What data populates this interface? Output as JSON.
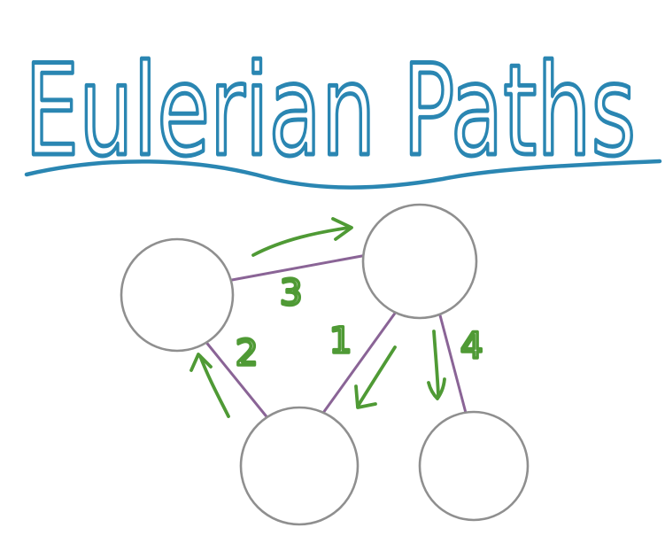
{
  "title": "Eulerian Paths",
  "colors": {
    "title": "#2a86b2",
    "node_stroke": "#8f8f8f",
    "edge": "#8a6496",
    "arrow": "#4f9a35",
    "background": "#ffffff"
  },
  "graph": {
    "nodes": [
      "node-a",
      "node-b",
      "node-c",
      "node-d"
    ],
    "edges": [
      {
        "id": "edge-1",
        "from": "node-b",
        "to": "node-c",
        "label": "1"
      },
      {
        "id": "edge-2",
        "from": "node-c",
        "to": "node-a",
        "label": "2"
      },
      {
        "id": "edge-3",
        "from": "node-a",
        "to": "node-b",
        "label": "3"
      },
      {
        "id": "edge-4",
        "from": "node-b",
        "to": "node-d",
        "label": "4"
      }
    ]
  }
}
